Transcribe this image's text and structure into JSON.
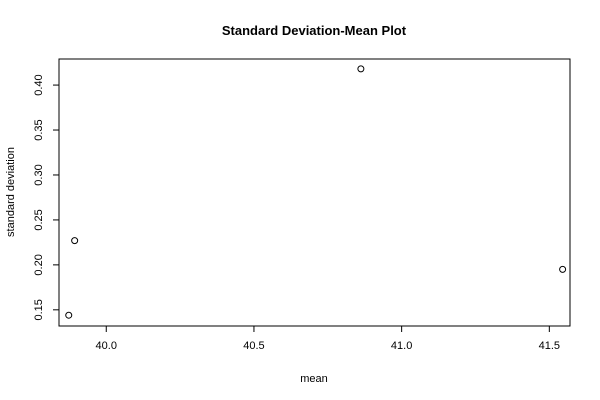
{
  "chart_data": {
    "type": "scatter",
    "title": "Standard Deviation-Mean Plot",
    "xlabel": "mean",
    "ylabel": "standard deviation",
    "xlim": [
      39.84,
      41.57
    ],
    "ylim": [
      0.132,
      0.429
    ],
    "x_ticks": [
      "40.0",
      "40.5",
      "41.0",
      "41.5"
    ],
    "y_ticks": [
      "0.15",
      "0.20",
      "0.25",
      "0.30",
      "0.35",
      "0.40"
    ],
    "grid": false,
    "legend": "none",
    "marker": "open-circle",
    "points": [
      {
        "x": 39.873,
        "y": 0.144
      },
      {
        "x": 39.893,
        "y": 0.227
      },
      {
        "x": 40.862,
        "y": 0.418
      },
      {
        "x": 41.545,
        "y": 0.195
      }
    ]
  }
}
